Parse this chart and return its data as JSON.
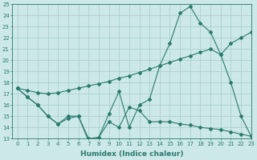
{
  "line1_x": [
    0,
    1,
    2,
    3,
    4,
    5,
    6,
    7,
    8,
    9,
    10,
    11,
    12,
    13,
    14,
    15,
    16,
    17,
    18,
    19,
    20,
    21,
    22,
    23
  ],
  "line1_y": [
    17.5,
    17.3,
    17.1,
    17.0,
    17.1,
    17.3,
    17.5,
    17.7,
    17.9,
    18.1,
    18.4,
    18.6,
    18.9,
    19.2,
    19.5,
    19.8,
    20.1,
    20.4,
    20.7,
    21.0,
    20.5,
    21.5,
    22.0,
    22.5
  ],
  "line2_x": [
    0,
    1,
    2,
    3,
    4,
    5,
    6,
    7,
    8,
    9,
    10,
    11,
    12,
    13,
    14,
    15,
    16,
    17,
    18,
    19,
    20,
    21,
    22,
    23
  ],
  "line2_y": [
    17.5,
    16.7,
    16.0,
    15.0,
    14.3,
    15.0,
    15.0,
    12.8,
    13.1,
    15.2,
    17.2,
    14.0,
    16.0,
    16.5,
    19.5,
    21.5,
    24.2,
    24.8,
    23.3,
    22.5,
    20.5,
    18.0,
    15.0,
    13.2
  ],
  "line3_x": [
    0,
    1,
    2,
    3,
    4,
    5,
    6,
    7,
    8,
    9,
    10,
    11,
    12,
    13,
    14,
    15,
    16,
    17,
    18,
    19,
    20,
    21,
    22,
    23
  ],
  "line3_y": [
    17.5,
    16.7,
    16.0,
    15.0,
    14.3,
    14.8,
    15.0,
    13.0,
    13.1,
    14.5,
    14.0,
    15.8,
    15.5,
    14.5,
    14.5,
    14.5,
    14.3,
    14.2,
    14.0,
    13.9,
    13.8,
    13.6,
    13.4,
    13.2
  ],
  "color": "#2a7a6e",
  "bg_color": "#cce8e8",
  "grid_color": "#a8cccc",
  "ylim": [
    13,
    25
  ],
  "xlim": [
    -0.5,
    23
  ],
  "yticks": [
    13,
    14,
    15,
    16,
    17,
    18,
    19,
    20,
    21,
    22,
    23,
    24,
    25
  ],
  "xticks": [
    0,
    1,
    2,
    3,
    4,
    5,
    6,
    7,
    8,
    9,
    10,
    11,
    12,
    13,
    14,
    15,
    16,
    17,
    18,
    19,
    20,
    21,
    22,
    23
  ],
  "xlabel": "Humidex (Indice chaleur)",
  "xlabel_fontsize": 6.5,
  "tick_fontsize": 5.0,
  "marker": "D",
  "marker_size": 2.0,
  "linewidth": 0.8
}
